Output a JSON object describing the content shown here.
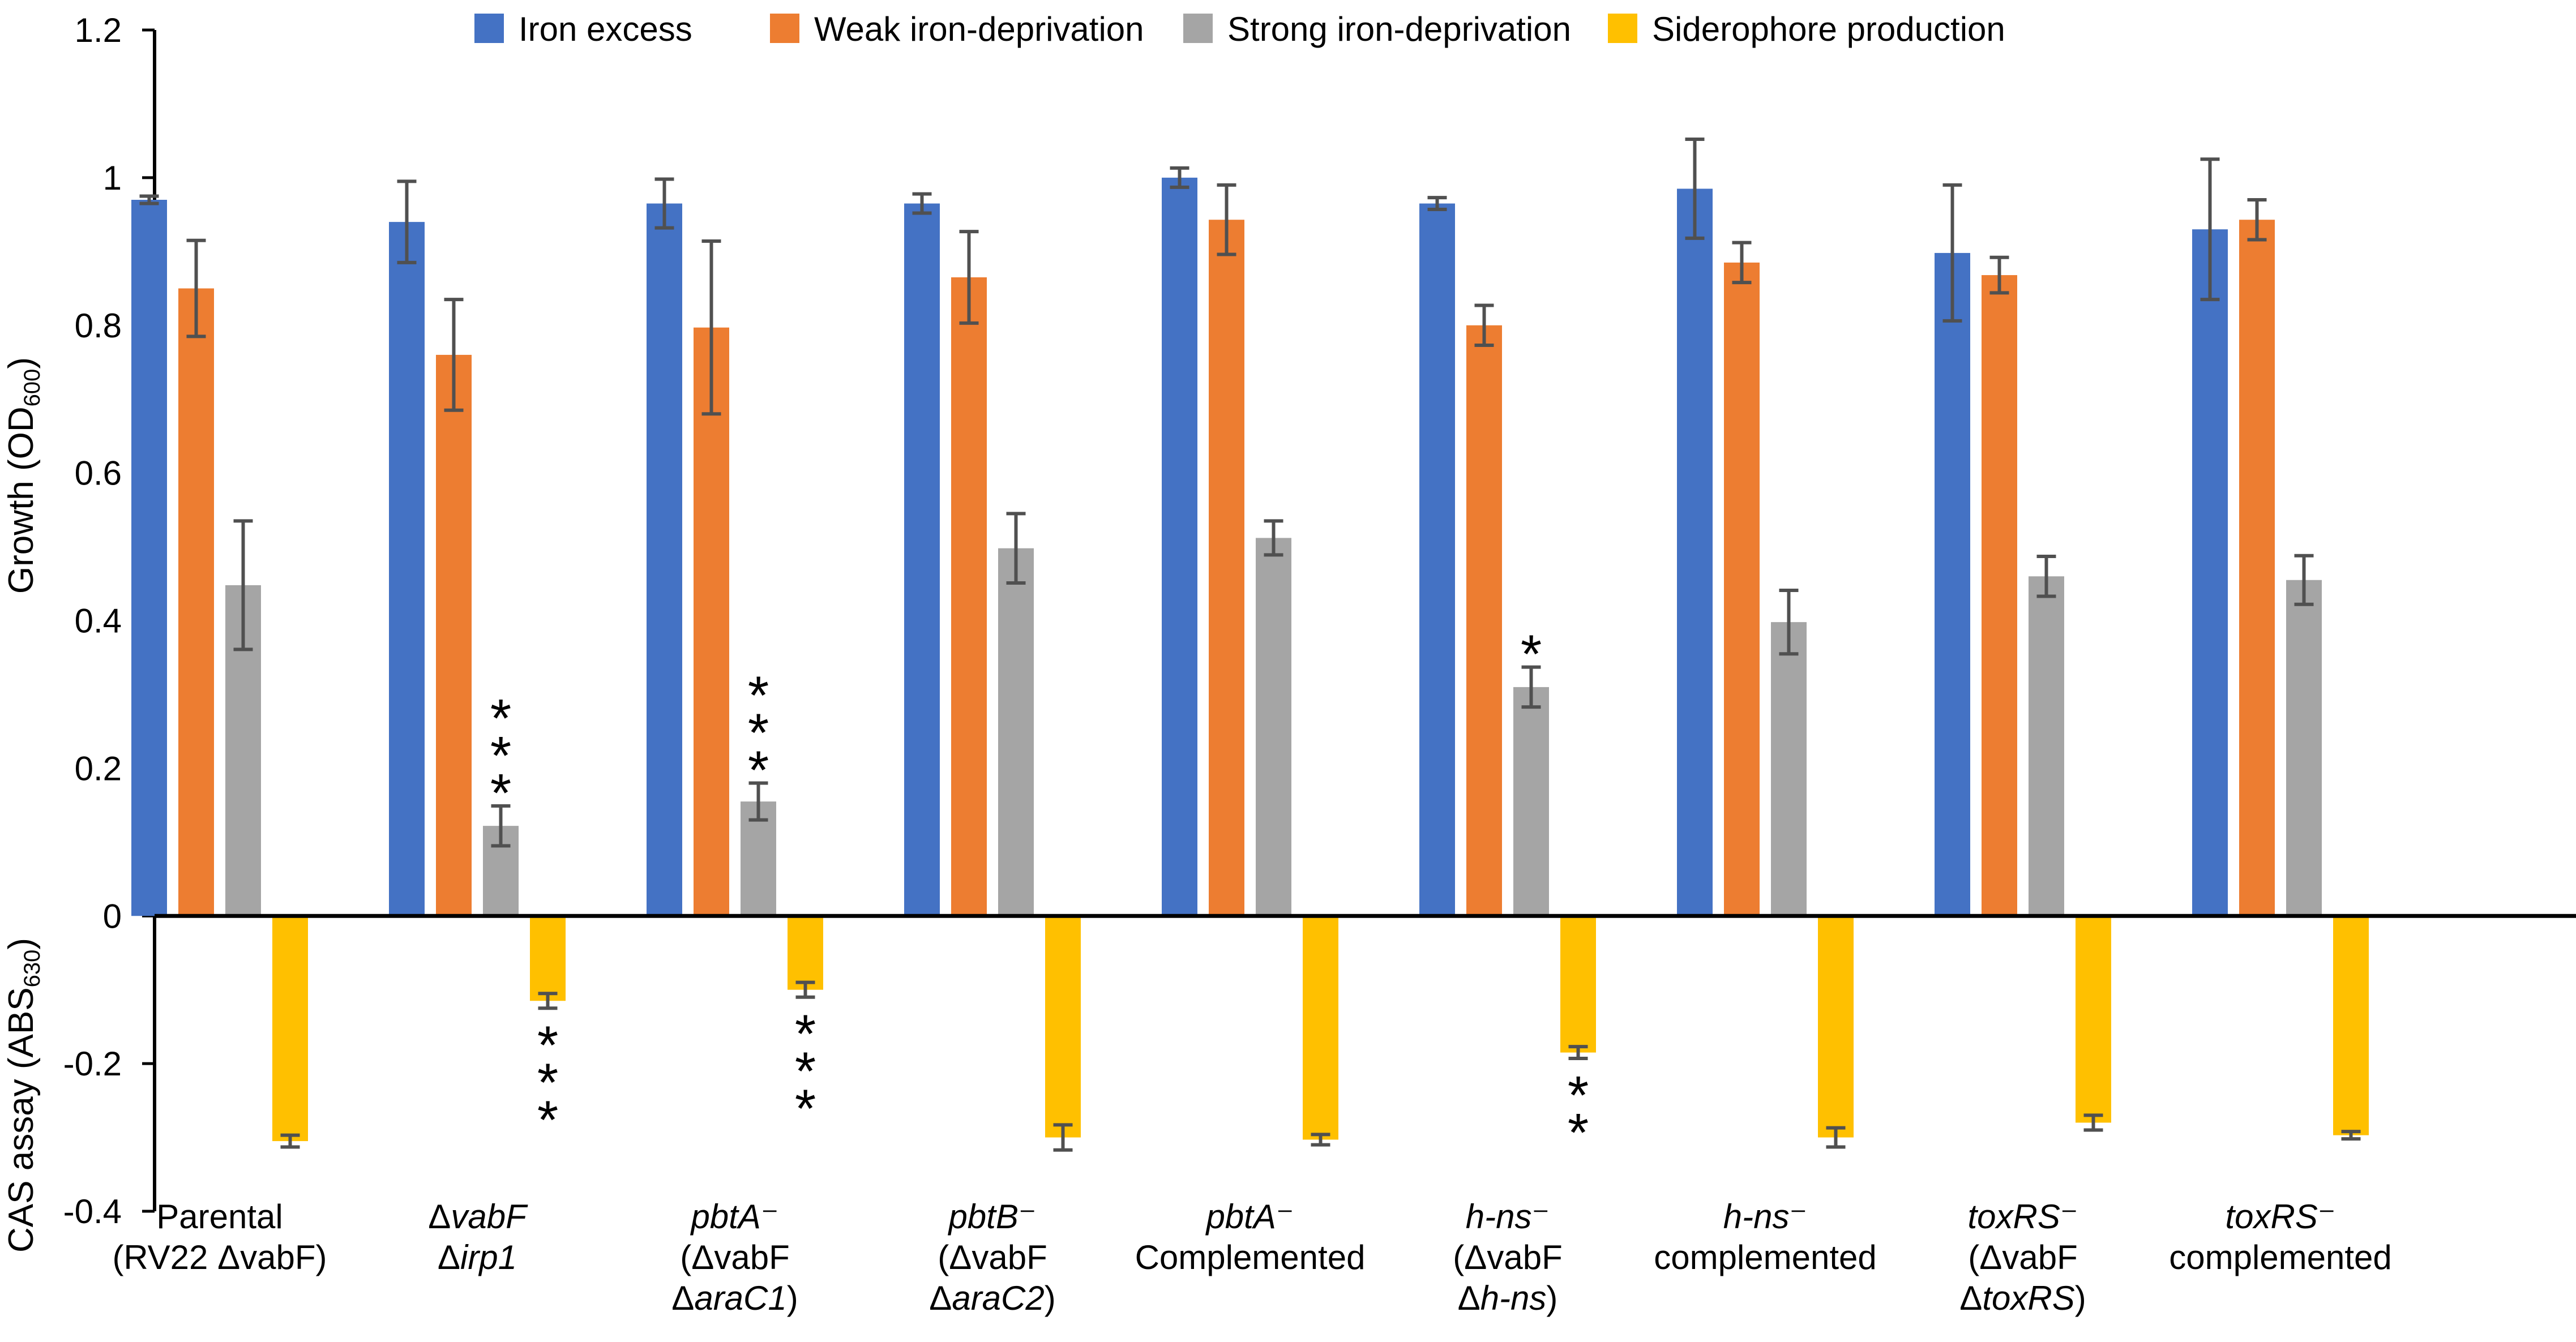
{
  "chart_data": {
    "type": "bar",
    "ylabel_top": "Growth (OD",
    "ylabel_top_sub": "600",
    "ylabel_top_close": ")",
    "ylabel_bottom": "CAS assay (ABS",
    "ylabel_bottom_sub": "630",
    "ylabel_bottom_close": ")",
    "ylim": [
      -0.4,
      1.2
    ],
    "yticks": [
      {
        "value": 1.2,
        "label": "1.2"
      },
      {
        "value": 1.0,
        "label": "1"
      },
      {
        "value": 0.8,
        "label": "0.8"
      },
      {
        "value": 0.6,
        "label": "0.6"
      },
      {
        "value": 0.4,
        "label": "0.4"
      },
      {
        "value": 0.2,
        "label": "0.2"
      },
      {
        "value": 0.0,
        "label": "0"
      },
      {
        "value": -0.2,
        "label": "-0.2"
      },
      {
        "value": -0.4,
        "label": "-0.4"
      }
    ],
    "legend": [
      {
        "name": "Iron excess",
        "color": "#4472C4"
      },
      {
        "name": "Weak iron-deprivation",
        "color": "#ED7D31"
      },
      {
        "name": "Strong iron-deprivation",
        "color": "#A5A5A5"
      },
      {
        "name": "Siderophore production",
        "color": "#FFC000"
      }
    ],
    "categories": [
      {
        "lines": [
          [
            {
              "t": "Parental",
              "i": false
            }
          ],
          [
            {
              "t": "(RV22 ΔvabF)",
              "i": false
            }
          ]
        ]
      },
      {
        "lines": [
          [
            {
              "t": "Δ",
              "i": false
            },
            {
              "t": "vabF",
              "i": true
            }
          ],
          [
            {
              "t": "Δ",
              "i": false
            },
            {
              "t": "irp1",
              "i": true
            }
          ]
        ]
      },
      {
        "lines": [
          [
            {
              "t": "pbtA",
              "i": true
            },
            {
              "t": "⁻",
              "i": false
            }
          ],
          [
            {
              "t": "(ΔvabF",
              "i": false
            }
          ],
          [
            {
              "t": "Δ",
              "i": false
            },
            {
              "t": "araC1",
              "i": true
            },
            {
              "t": ")",
              "i": false
            }
          ]
        ]
      },
      {
        "lines": [
          [
            {
              "t": "pbtB",
              "i": true
            },
            {
              "t": "⁻",
              "i": false
            }
          ],
          [
            {
              "t": "(ΔvabF",
              "i": false
            }
          ],
          [
            {
              "t": "Δ",
              "i": false
            },
            {
              "t": "araC2",
              "i": true
            },
            {
              "t": ")",
              "i": false
            }
          ]
        ]
      },
      {
        "lines": [
          [
            {
              "t": "pbtA",
              "i": true
            },
            {
              "t": "⁻",
              "i": false
            }
          ],
          [
            {
              "t": "Complemented",
              "i": false
            }
          ]
        ]
      },
      {
        "lines": [
          [
            {
              "t": "h-ns",
              "i": true
            },
            {
              "t": "⁻",
              "i": false
            }
          ],
          [
            {
              "t": "(ΔvabF",
              "i": false
            }
          ],
          [
            {
              "t": "Δ",
              "i": false
            },
            {
              "t": "h-ns",
              "i": true
            },
            {
              "t": ")",
              "i": false
            }
          ]
        ]
      },
      {
        "lines": [
          [
            {
              "t": "h-ns",
              "i": true
            },
            {
              "t": "⁻",
              "i": false
            }
          ],
          [
            {
              "t": "complemented",
              "i": false
            }
          ]
        ]
      },
      {
        "lines": [
          [
            {
              "t": "toxRS",
              "i": true
            },
            {
              "t": "⁻",
              "i": false
            }
          ],
          [
            {
              "t": "(ΔvabF",
              "i": false
            }
          ],
          [
            {
              "t": "Δ",
              "i": false
            },
            {
              "t": "toxRS",
              "i": true
            },
            {
              "t": ")",
              "i": false
            }
          ]
        ]
      },
      {
        "lines": [
          [
            {
              "t": "toxRS",
              "i": true
            },
            {
              "t": "⁻",
              "i": false
            }
          ],
          [
            {
              "t": "complemented",
              "i": false
            }
          ]
        ]
      }
    ],
    "series": [
      {
        "name": "Iron excess",
        "color": "#4472C4",
        "values": [
          0.97,
          0.94,
          0.965,
          0.965,
          1.0,
          0.965,
          0.985,
          0.898,
          0.93
        ],
        "errors": [
          0.005,
          0.055,
          0.033,
          0.013,
          0.013,
          0.008,
          0.067,
          0.092,
          0.095
        ]
      },
      {
        "name": "Weak iron-deprivation",
        "color": "#ED7D31",
        "values": [
          0.85,
          0.76,
          0.797,
          0.865,
          0.943,
          0.8,
          0.885,
          0.868,
          0.943
        ],
        "errors": [
          0.065,
          0.075,
          0.117,
          0.062,
          0.047,
          0.027,
          0.027,
          0.024,
          0.027
        ]
      },
      {
        "name": "Strong iron-deprivation",
        "color": "#A5A5A5",
        "values": [
          0.448,
          0.122,
          0.155,
          0.498,
          0.512,
          0.31,
          0.398,
          0.46,
          0.455
        ],
        "errors": [
          0.087,
          0.027,
          0.025,
          0.047,
          0.023,
          0.027,
          0.043,
          0.027,
          0.033
        ]
      },
      {
        "name": "Siderophore production",
        "color": "#FFC000",
        "values": [
          -0.305,
          -0.115,
          -0.1,
          -0.3,
          -0.303,
          -0.185,
          -0.3,
          -0.28,
          -0.297
        ],
        "errors": [
          0.008,
          0.01,
          0.01,
          0.017,
          0.007,
          0.008,
          0.013,
          0.01,
          0.005
        ]
      }
    ],
    "significance": [
      {
        "category": 1,
        "series": 2,
        "count": 3,
        "stars": [
          "*",
          "*",
          "*"
        ]
      },
      {
        "category": 2,
        "series": 2,
        "count": 3,
        "stars": [
          "*",
          "*",
          "*"
        ]
      },
      {
        "category": 5,
        "series": 2,
        "count": 1,
        "stars": [
          "*"
        ]
      },
      {
        "category": 1,
        "series": 3,
        "count": 3,
        "stars": [
          "*",
          "*",
          "*"
        ]
      },
      {
        "category": 2,
        "series": 3,
        "count": 3,
        "stars": [
          "*",
          "*",
          "*"
        ]
      },
      {
        "category": 5,
        "series": 3,
        "count": 2,
        "stars": [
          "*",
          "*"
        ]
      }
    ]
  }
}
